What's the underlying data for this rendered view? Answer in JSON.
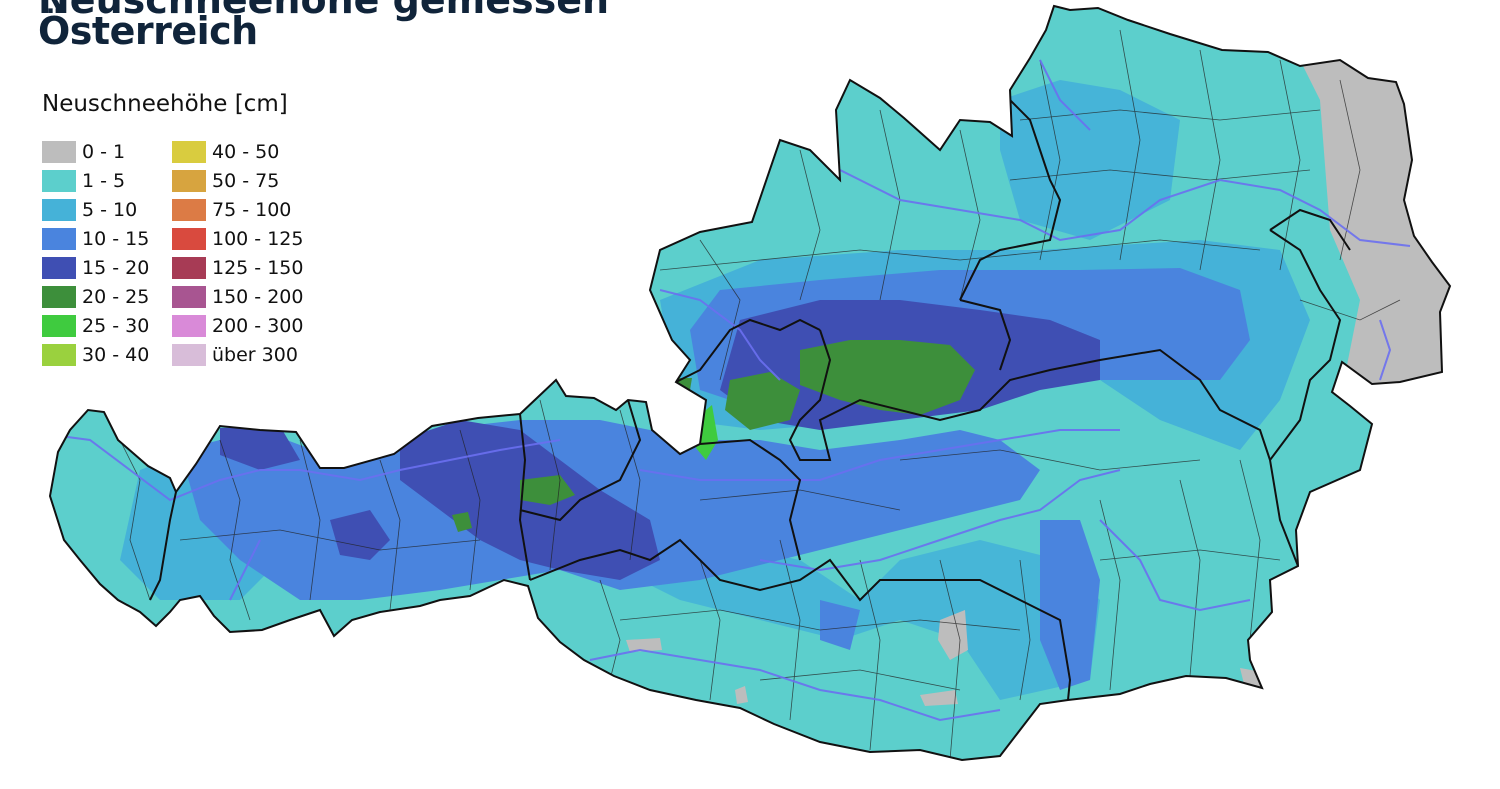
{
  "map": {
    "title_partial": "Neuschneehöhe gemessen",
    "title": "Österreich",
    "legend": {
      "title": "Neuschneehöhe [cm]",
      "items": [
        {
          "label": "0 - 1",
          "color": "#bdbdbd"
        },
        {
          "label": "1 - 5",
          "color": "#5ccfcc"
        },
        {
          "label": "5 - 10",
          "color": "#45b2d8"
        },
        {
          "label": "10 - 15",
          "color": "#4a84de"
        },
        {
          "label": "15 - 20",
          "color": "#3f4fb3"
        },
        {
          "label": "20 - 25",
          "color": "#3d8f3b"
        },
        {
          "label": "25 - 30",
          "color": "#3fcb3f"
        },
        {
          "label": "30 - 40",
          "color": "#9ad13e"
        },
        {
          "label": "40 - 50",
          "color": "#d9cc3f"
        },
        {
          "label": "50 - 75",
          "color": "#d7a43f"
        },
        {
          "label": "75 - 100",
          "color": "#dc7b45"
        },
        {
          "label": "100 - 125",
          "color": "#d94a3e"
        },
        {
          "label": "125 - 150",
          "color": "#a73b55"
        },
        {
          "label": "150 - 200",
          "color": "#a85591"
        },
        {
          "label": "200 - 300",
          "color": "#d98ad8"
        },
        {
          "label": "über 300",
          "color": "#d8bdd9"
        }
      ]
    },
    "colors": {
      "border": "#111111",
      "district_border": "#222222",
      "river": "#6a6ff0",
      "grey_zone": "#bdbdbd"
    }
  }
}
